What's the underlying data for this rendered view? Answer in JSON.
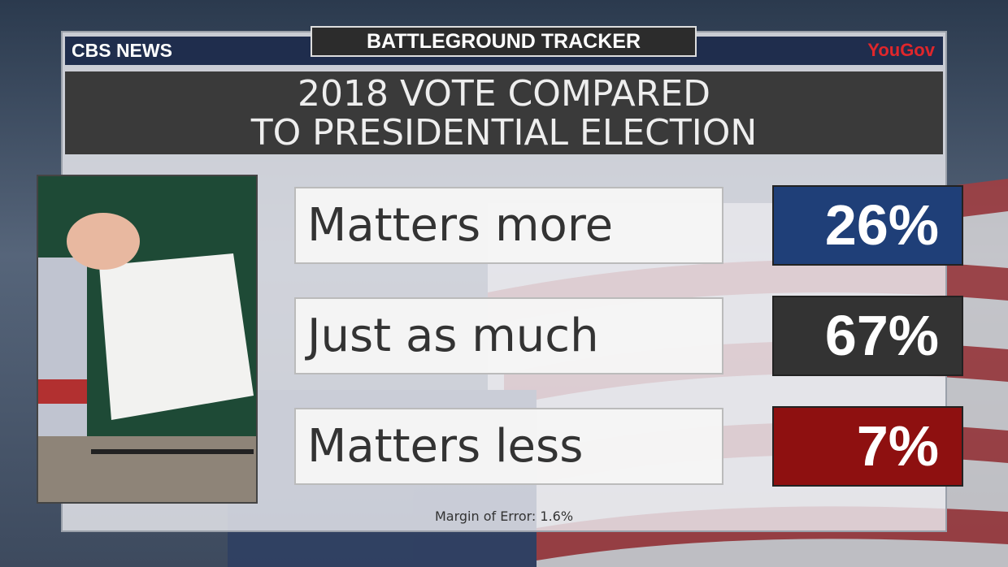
{
  "header": {
    "badge": "BATTLEGROUND TRACKER",
    "network": "CBS NEWS",
    "partner": "YouGov"
  },
  "title": [
    "2018 VOTE COMPARED",
    "TO PRESIDENTIAL ELECTION"
  ],
  "rows": [
    {
      "label": "Matters more",
      "value": "26%",
      "color": "#1f3f78"
    },
    {
      "label": "Just as much",
      "value": "67%",
      "color": "#333333"
    },
    {
      "label": "Matters less",
      "value": "7%",
      "color": "#8e1010"
    }
  ],
  "footnote": "Margin of Error: 1.6%"
}
